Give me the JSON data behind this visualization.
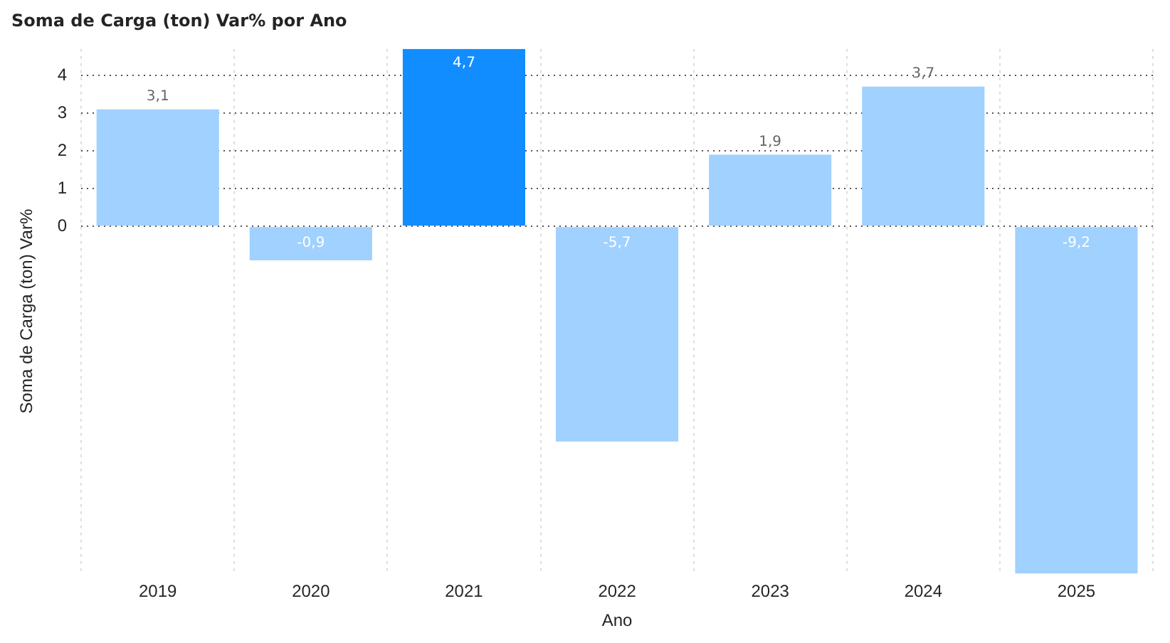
{
  "chart_data": {
    "type": "bar",
    "title": "Soma de Carga (ton) Var% por Ano",
    "xlabel": "Ano",
    "ylabel": "Soma de Carga (ton) Var%",
    "categories": [
      "2019",
      "2020",
      "2021",
      "2022",
      "2023",
      "2024",
      "2025"
    ],
    "values": [
      3.1,
      -0.9,
      4.7,
      -5.7,
      1.9,
      3.7,
      -9.2
    ],
    "colors": [
      "#a0d1ff",
      "#a0d1ff",
      "#118dff",
      "#a0d1ff",
      "#a0d1ff",
      "#a0d1ff",
      "#a0d1ff"
    ],
    "value_labels": [
      "3,1",
      "-0,9",
      "4,7",
      "-5,7",
      "1,9",
      "3,7",
      "-9,2"
    ],
    "ylim": [
      -9.2,
      4.7
    ],
    "yticks": [
      0,
      1,
      2,
      3,
      4
    ],
    "grid": true,
    "legend": false
  }
}
